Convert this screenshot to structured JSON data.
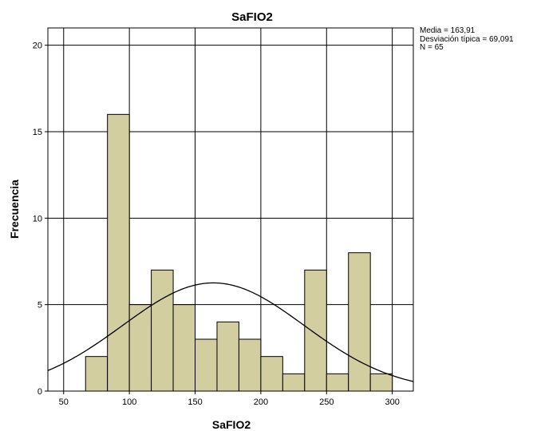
{
  "chart_data": {
    "type": "bar",
    "title": "SaFIO2",
    "xlabel": "SaFIO2",
    "ylabel": "Frecuencia",
    "xlim": [
      38,
      316
    ],
    "ylim": [
      0,
      21
    ],
    "x_ticks": [
      50,
      100,
      150,
      200,
      250,
      300
    ],
    "x_tick_labels": [
      "50",
      "100",
      "150",
      "200",
      "250",
      "300"
    ],
    "y_ticks": [
      0,
      5,
      10,
      15,
      20
    ],
    "y_tick_labels": [
      "0",
      "5",
      "10",
      "15",
      "20"
    ],
    "grid": true,
    "bin_width": 16.67,
    "bins": [
      {
        "start": 66.67,
        "end": 83.33,
        "count": 2
      },
      {
        "start": 83.33,
        "end": 100.0,
        "count": 16
      },
      {
        "start": 100.0,
        "end": 116.67,
        "count": 5
      },
      {
        "start": 116.67,
        "end": 133.33,
        "count": 7
      },
      {
        "start": 133.33,
        "end": 150.0,
        "count": 5
      },
      {
        "start": 150.0,
        "end": 166.67,
        "count": 3
      },
      {
        "start": 166.67,
        "end": 183.33,
        "count": 4
      },
      {
        "start": 183.33,
        "end": 200.0,
        "count": 3
      },
      {
        "start": 200.0,
        "end": 216.67,
        "count": 2
      },
      {
        "start": 216.67,
        "end": 233.33,
        "count": 1
      },
      {
        "start": 233.33,
        "end": 250.0,
        "count": 7
      },
      {
        "start": 250.0,
        "end": 266.67,
        "count": 1
      },
      {
        "start": 266.67,
        "end": 283.33,
        "count": 8
      },
      {
        "start": 283.33,
        "end": 300.0,
        "count": 1
      }
    ],
    "normal_curve": {
      "mean": 163.91,
      "sd": 69.091,
      "n": 65
    },
    "stats_legend": {
      "mean_text": "Media = 163,91",
      "sd_text": "Desviación típica = 69,091",
      "n_text": "N = 65"
    },
    "colors": {
      "bar_fill": "#d3ce9f",
      "bar_stroke": "#000000",
      "grid": "#000000",
      "curve": "#000000"
    }
  }
}
